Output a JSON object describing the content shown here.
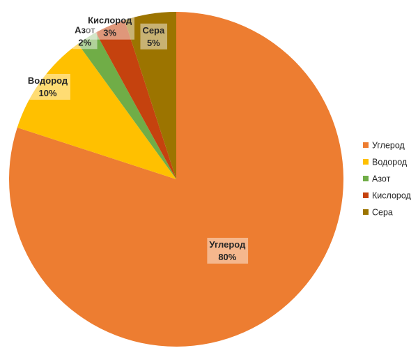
{
  "chart_data": {
    "type": "pie",
    "title": "",
    "categories": [
      "Углерод",
      "Водород",
      "Азот",
      "Кислород",
      "Сера"
    ],
    "values": [
      80,
      10,
      2,
      3,
      5
    ],
    "value_labels": [
      "80%",
      "10%",
      "2%",
      "3%",
      "5%"
    ],
    "colors": [
      "#ED7D31",
      "#FFC000",
      "#70AD47",
      "#C5420E",
      "#9C7400"
    ],
    "legend": {
      "position": "right",
      "entries": [
        "Углерод",
        "Водород",
        "Азот",
        "Кислород",
        "Сера"
      ]
    }
  }
}
